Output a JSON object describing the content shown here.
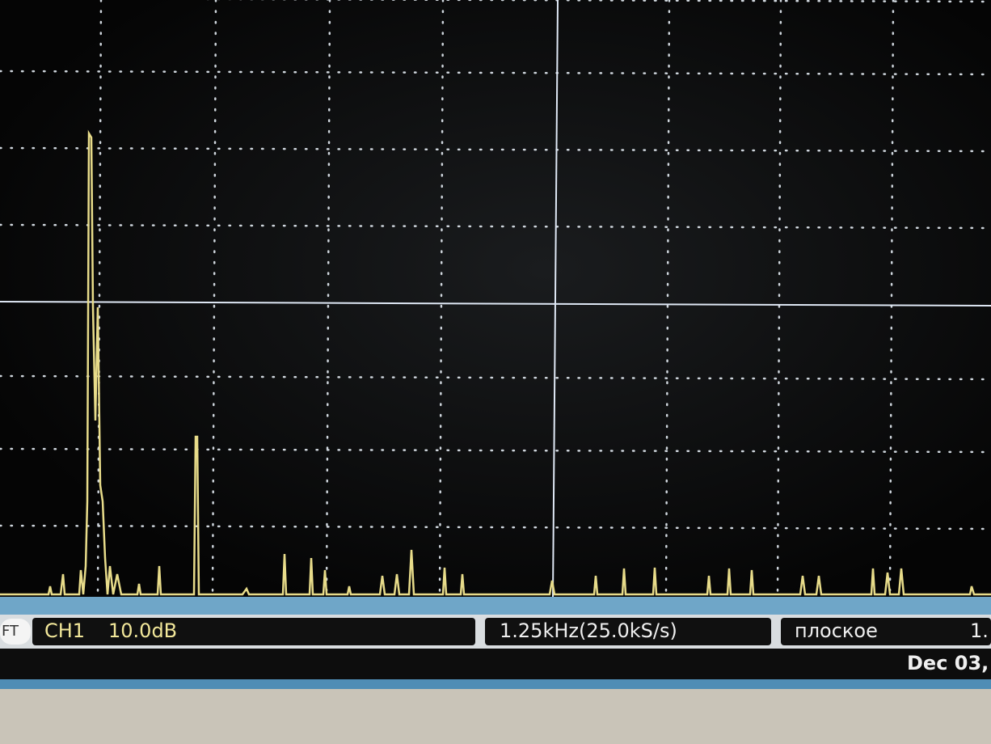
{
  "status_bar": {
    "mode": "FT",
    "channel": "CH1",
    "scale": "10.0dB",
    "span": "1.25kHz(25.0kS/s)",
    "window": "плоское",
    "extra": "1."
  },
  "footer": {
    "date": "Dec 03,"
  }
}
